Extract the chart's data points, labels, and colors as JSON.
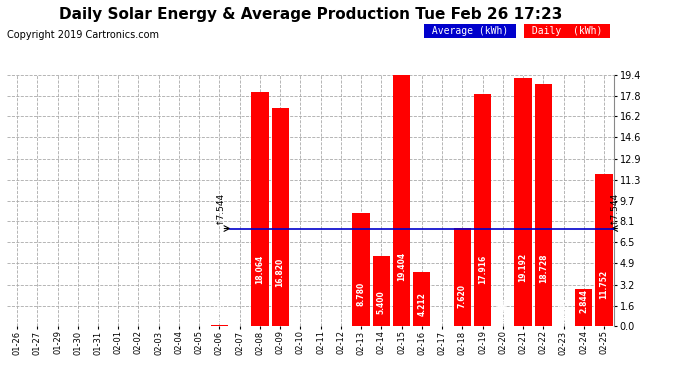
{
  "title": "Daily Solar Energy & Average Production Tue Feb 26 17:23",
  "copyright": "Copyright 2019 Cartronics.com",
  "categories": [
    "01-26",
    "01-27",
    "01-29",
    "01-30",
    "01-31",
    "02-01",
    "02-02",
    "02-03",
    "02-04",
    "02-05",
    "02-06",
    "02-07",
    "02-08",
    "02-09",
    "02-10",
    "02-11",
    "02-12",
    "02-13",
    "02-14",
    "02-15",
    "02-16",
    "02-17",
    "02-18",
    "02-19",
    "02-20",
    "02-21",
    "02-22",
    "02-23",
    "02-24",
    "02-25"
  ],
  "values": [
    0.0,
    0.0,
    0.0,
    0.0,
    0.0,
    0.0,
    0.0,
    0.0,
    0.0,
    0.0,
    0.06,
    0.0,
    18.064,
    16.82,
    0.0,
    0.0,
    0.0,
    8.78,
    5.4,
    19.404,
    4.212,
    0.0,
    7.62,
    17.916,
    0.04,
    19.192,
    18.728,
    0.056,
    2.844,
    11.752
  ],
  "average_value": 7.544,
  "bar_color": "#ff0000",
  "average_line_color": "#0000cc",
  "background_color": "#ffffff",
  "plot_bg_color": "#ffffff",
  "grid_color": "#aaaaaa",
  "ylim": [
    0,
    19.4
  ],
  "yticks": [
    0.0,
    1.6,
    3.2,
    4.9,
    6.5,
    8.1,
    9.7,
    11.3,
    12.9,
    14.6,
    16.2,
    17.8,
    19.4
  ],
  "legend_avg_bg": "#0000cc",
  "legend_daily_bg": "#ff0000",
  "legend_avg_text": "Average (kWh)",
  "legend_daily_text": "Daily  (kWh)",
  "avg_label": "↑7.544",
  "title_fontsize": 11,
  "bar_label_fontsize": 5.5,
  "tick_fontsize": 7,
  "copyright_fontsize": 7
}
